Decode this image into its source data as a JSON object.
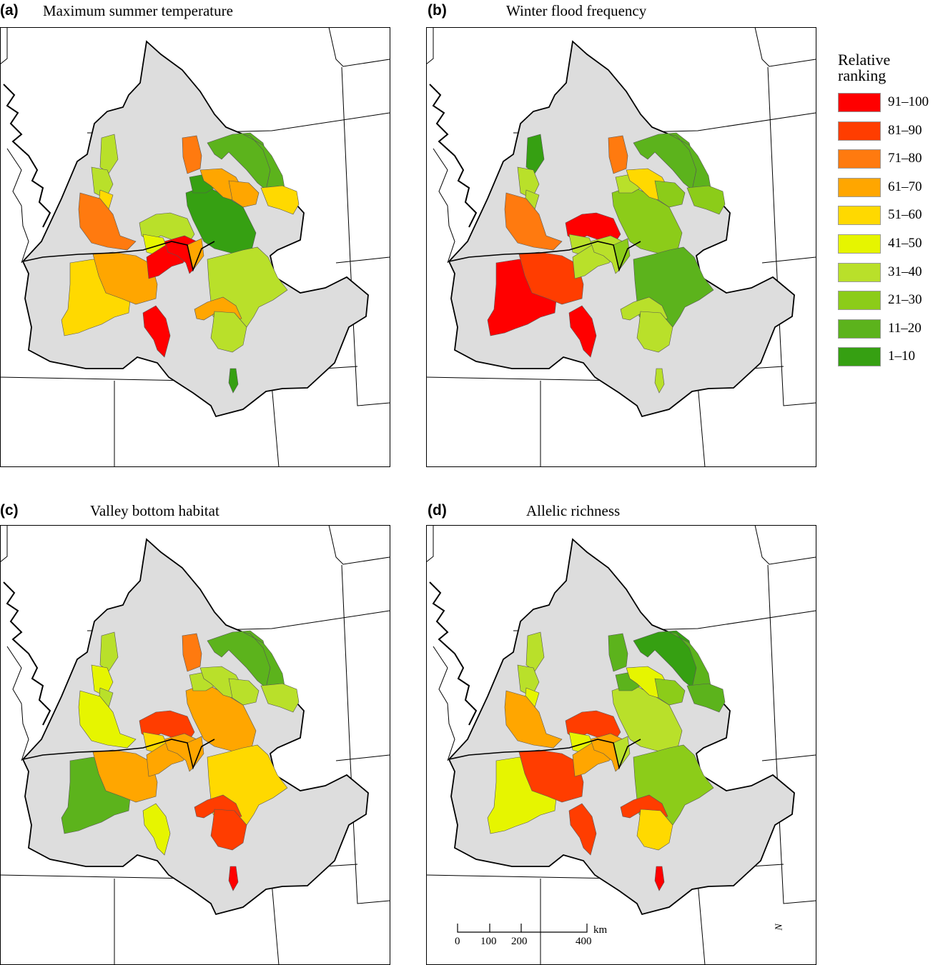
{
  "panels": [
    {
      "label": "(a)",
      "title": "Maximum summer temperature"
    },
    {
      "label": "(b)",
      "title": "Winter flood frequency"
    },
    {
      "label": "(c)",
      "title": "Valley bottom habitat"
    },
    {
      "label": "(d)",
      "title": "Allelic richness"
    }
  ],
  "legend": {
    "title_line1": "Relative",
    "title_line2": "ranking",
    "classes": [
      {
        "label": "91–100",
        "color": "#ff0000"
      },
      {
        "label": "81–90",
        "color": "#ff3d00"
      },
      {
        "label": "71–80",
        "color": "#ff7a0f"
      },
      {
        "label": "61–70",
        "color": "#ffa600"
      },
      {
        "label": "51–60",
        "color": "#ffd900"
      },
      {
        "label": "41–50",
        "color": "#e6f500"
      },
      {
        "label": "31–40",
        "color": "#b9e02a"
      },
      {
        "label": "21–30",
        "color": "#8ccc19"
      },
      {
        "label": "11–20",
        "color": "#5cb31c"
      },
      {
        "label": "1–10",
        "color": "#36a012"
      }
    ]
  },
  "scale": {
    "ticks": [
      "0",
      "100",
      "200",
      "400"
    ],
    "unit": "km"
  },
  "north_label": "N",
  "basin_color": "#dddddd",
  "watershed_rankings": {
    "a": {
      "columbia_upper_west": "31–40",
      "yakima_north": "31–40",
      "yakima_south": "51–60",
      "john_day_west": "71–80",
      "deschutes": "51–60",
      "john_day": "61–70",
      "umatilla": "31–40",
      "walla_walla": "41–50",
      "snake_hells_canyon": "91–100",
      "grande_ronde": "91–100",
      "salmon_lower": "61–70",
      "clearwater": "1–10",
      "clearwater_north": "1–10",
      "kootenai": "11–20",
      "flathead": "11–20",
      "pend_oreille": "71–80",
      "spokane": "61–70",
      "bitterroot": "61–70",
      "clark_fork": "51–60",
      "salmon_upper": "31–40",
      "snake_upper": "61–70",
      "malheur": "91–100",
      "owyhee": "31–40",
      "south_tip": "1–10"
    },
    "b": {
      "columbia_upper_west": "1–10",
      "yakima_north": "31–40",
      "yakima_south": "31–40",
      "john_day_west": "71–80",
      "deschutes": "91–100",
      "john_day": "81–90",
      "umatilla": "91–100",
      "walla_walla": "31–40",
      "snake_hells_canyon": "31–40",
      "grande_ronde": "31–40",
      "salmon_lower": "21–30",
      "clearwater": "21–30",
      "clearwater_north": "31–40",
      "kootenai": "11–20",
      "flathead": "11–20",
      "pend_oreille": "71–80",
      "spokane": "51–60",
      "bitterroot": "21–30",
      "clark_fork": "21–30",
      "salmon_upper": "11–20",
      "snake_upper": "31–40",
      "malheur": "91–100",
      "owyhee": "31–40",
      "south_tip": "31–40"
    },
    "c": {
      "columbia_upper_west": "31–40",
      "yakima_north": "41–50",
      "yakima_south": "31–40",
      "john_day_west": "41–50",
      "deschutes": "11–20",
      "john_day": "61–70",
      "umatilla": "81–90",
      "walla_walla": "51–60",
      "snake_hells_canyon": "61–70",
      "grande_ronde": "61–70",
      "salmon_lower": "61–70",
      "clearwater": "61–70",
      "clearwater_north": "31–40",
      "kootenai": "11–20",
      "flathead": "11–20",
      "pend_oreille": "71–80",
      "spokane": "31–40",
      "bitterroot": "31–40",
      "clark_fork": "31–40",
      "salmon_upper": "51–60",
      "snake_upper": "81–90",
      "malheur": "41–50",
      "owyhee": "81–90",
      "south_tip": "91–100"
    },
    "d": {
      "columbia_upper_west": "31–40",
      "yakima_north": "31–40",
      "yakima_south": "41–50",
      "john_day_west": "61–70",
      "deschutes": "41–50",
      "john_day": "81–90",
      "umatilla": "81–90",
      "walla_walla": "41–50",
      "snake_hells_canyon": "61–70",
      "grande_ronde": "61–70",
      "salmon_lower": "31–40",
      "clearwater": "31–40",
      "clearwater_north": "11–20",
      "kootenai": "1–10",
      "flathead": "11–20",
      "pend_oreille": "11–20",
      "spokane": "41–50",
      "bitterroot": "21–30",
      "clark_fork": "11–20",
      "salmon_upper": "21–30",
      "snake_upper": "81–90",
      "malheur": "81–90",
      "owyhee": "51–60",
      "south_tip": "91–100"
    }
  }
}
